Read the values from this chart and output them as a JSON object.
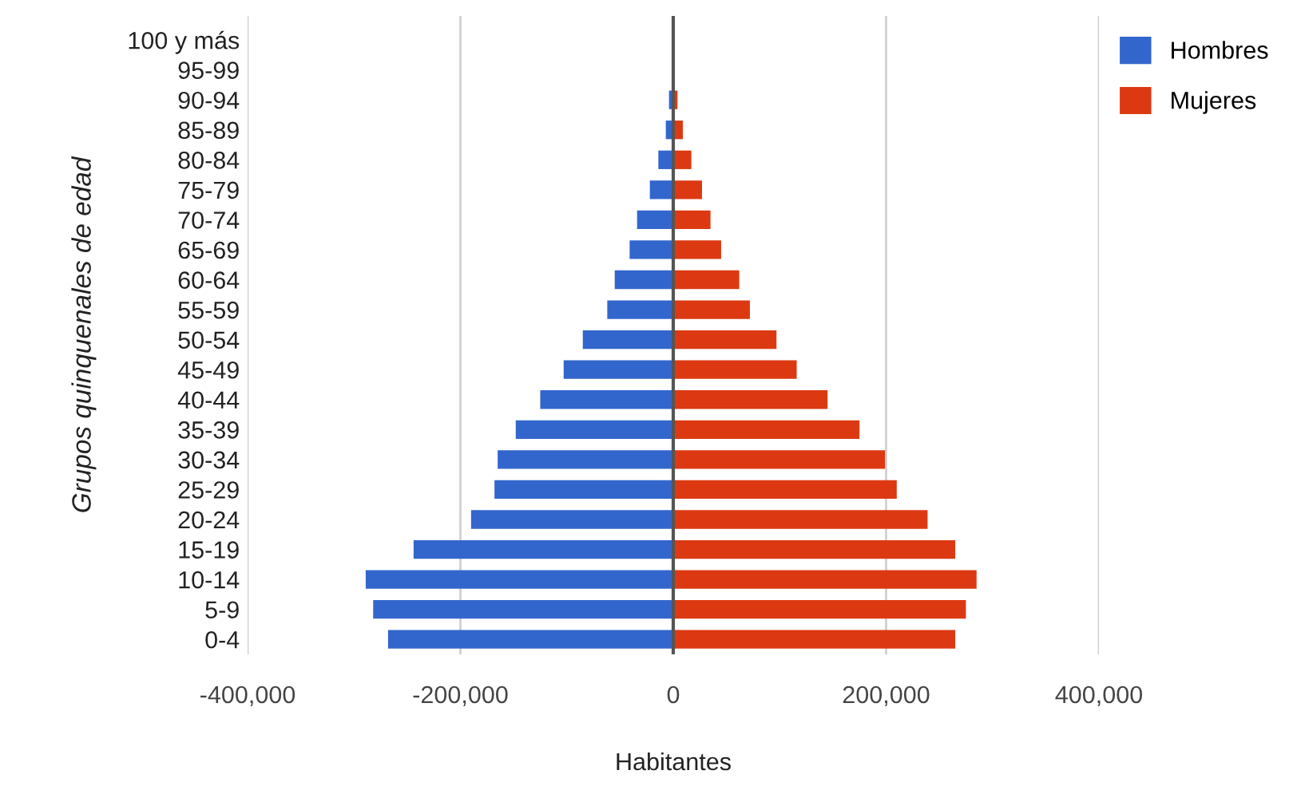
{
  "chart_data": {
    "type": "bar",
    "orientation": "horizontal",
    "xlabel": "Habitantes",
    "ylabel": "Grupos quinquenales de edad",
    "categories": [
      "100 y más",
      "95-99",
      "90-94",
      "85-89",
      "80-84",
      "75-79",
      "70-74",
      "65-69",
      "60-64",
      "55-59",
      "50-54",
      "45-49",
      "40-44",
      "35-39",
      "30-34",
      "25-29",
      "20-24",
      "15-19",
      "10-14",
      "5-9",
      "0-4"
    ],
    "series": [
      {
        "name": "Hombres",
        "color": "#3366cc",
        "values": [
          0,
          0,
          -4000,
          -7000,
          -14000,
          -22000,
          -34000,
          -41000,
          -55000,
          -62000,
          -85000,
          -103000,
          -125000,
          -148000,
          -165000,
          -168000,
          -190000,
          -244000,
          -289000,
          -282000,
          -268000
        ]
      },
      {
        "name": "Mujeres",
        "color": "#dc3912",
        "values": [
          0,
          0,
          4000,
          9000,
          17000,
          27000,
          35000,
          45000,
          62000,
          72000,
          97000,
          116000,
          145000,
          175000,
          199000,
          210000,
          239000,
          265000,
          285000,
          275000,
          265000
        ]
      }
    ],
    "xlim": [
      -400000,
      400000
    ],
    "xticks": [
      {
        "value": -400000,
        "label": "-400,000"
      },
      {
        "value": -200000,
        "label": "-200,000"
      },
      0,
      {
        "value": 200000,
        "label": "200,000"
      },
      {
        "value": 400000,
        "label": "400,000"
      }
    ],
    "stacked": true,
    "grid": "x",
    "legend": "top right"
  }
}
